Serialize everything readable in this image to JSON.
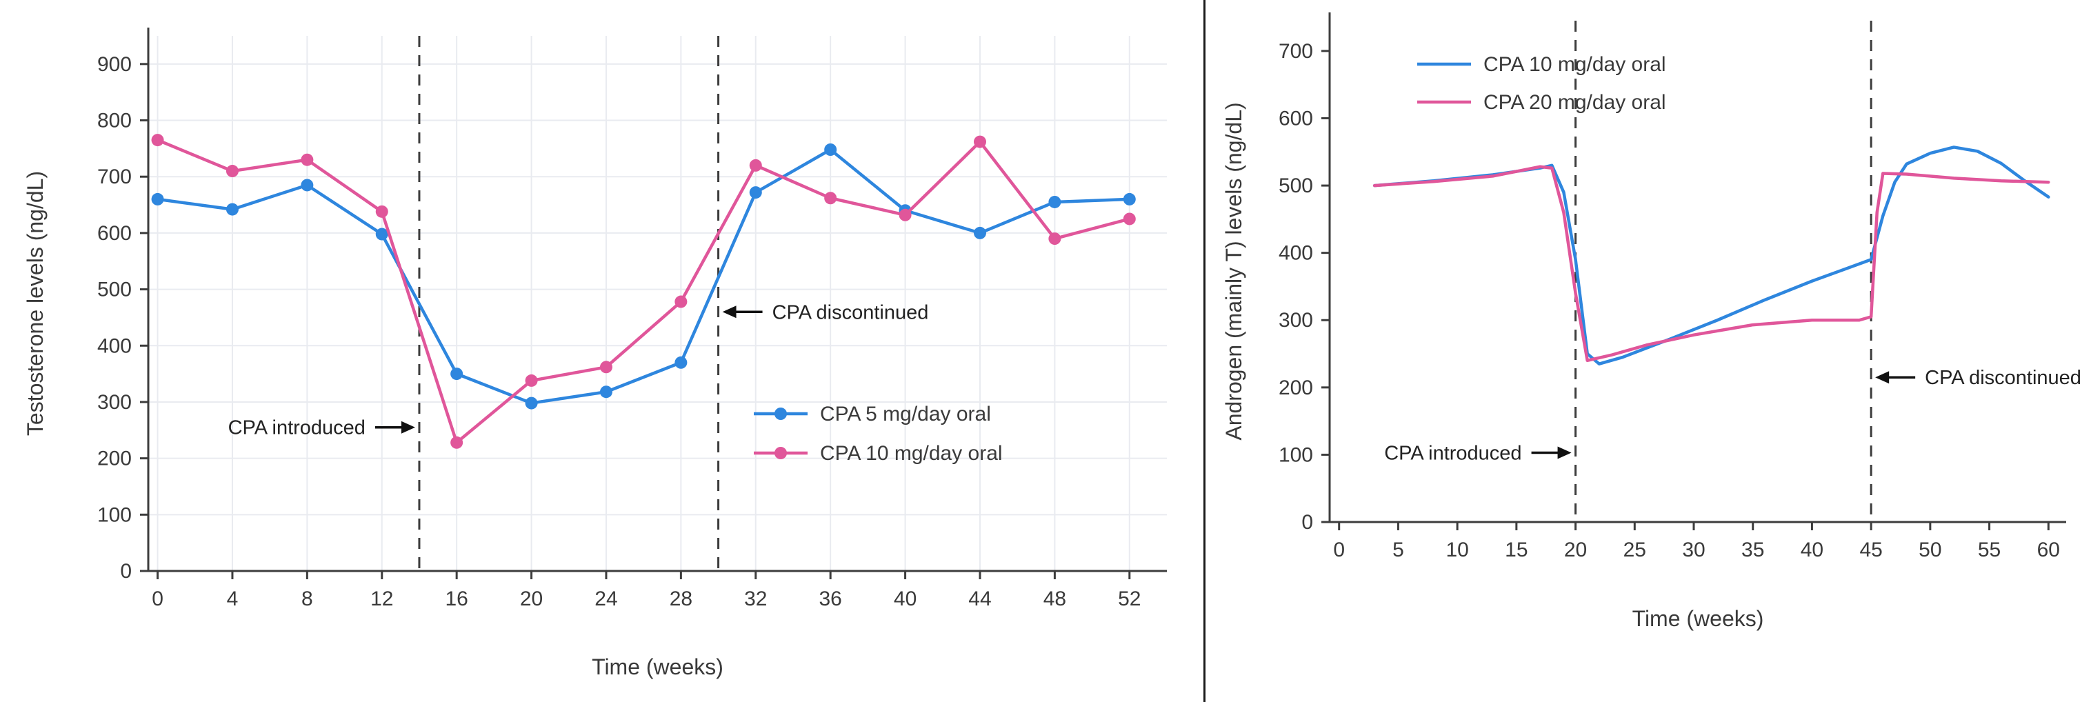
{
  "figure": {
    "background": "#ffffff",
    "divider_color": "#1a1a1a",
    "axis_color": "#3d3d3d",
    "grid_color": "#e9ebf0",
    "dashed_line_color": "#3c3c3c"
  },
  "chart_data": [
    {
      "type": "line",
      "title": "",
      "xlabel": "Time (weeks)",
      "ylabel": "Testosterone levels (ng/dL)",
      "xlim": [
        -0.5,
        54
      ],
      "ylim": [
        0,
        950
      ],
      "xticks": [
        0,
        4,
        8,
        12,
        16,
        20,
        24,
        28,
        32,
        36,
        40,
        44,
        48,
        52
      ],
      "yticks": [
        0,
        100,
        200,
        300,
        400,
        500,
        600,
        700,
        800,
        900
      ],
      "grid": true,
      "legend_position": "lower-right",
      "series": [
        {
          "name": "CPA 5 mg/day oral",
          "color": "#2e86de",
          "markers": true,
          "x": [
            0,
            4,
            8,
            12,
            16,
            20,
            24,
            28,
            32,
            36,
            40,
            44,
            48,
            52
          ],
          "y": [
            660,
            642,
            685,
            598,
            350,
            298,
            318,
            370,
            672,
            748,
            640,
            600,
            655,
            660
          ]
        },
        {
          "name": "CPA 10 mg/day oral",
          "color": "#e0569a",
          "markers": true,
          "x": [
            0,
            4,
            8,
            12,
            16,
            20,
            24,
            28,
            32,
            36,
            40,
            44,
            48,
            52
          ],
          "y": [
            765,
            710,
            730,
            638,
            228,
            338,
            362,
            478,
            720,
            662,
            632,
            762,
            590,
            625
          ]
        }
      ],
      "vlines": [
        14,
        30
      ],
      "annotations": [
        {
          "text": "CPA introduced",
          "direction": "right",
          "x": 14,
          "y": 255
        },
        {
          "text": "CPA discontinued",
          "direction": "left",
          "x": 30,
          "y": 460
        }
      ]
    },
    {
      "type": "line",
      "title": "",
      "xlabel": "Time (weeks)",
      "ylabel": "Androgen (mainly T) levels (ng/dL)",
      "xlim": [
        -0.8,
        61.5
      ],
      "ylim": [
        0,
        745
      ],
      "xticks": [
        0,
        5,
        10,
        15,
        20,
        25,
        30,
        35,
        40,
        45,
        50,
        55,
        60
      ],
      "yticks": [
        0,
        100,
        200,
        300,
        400,
        500,
        600,
        700
      ],
      "grid": false,
      "legend_position": "upper-left",
      "series": [
        {
          "name": "CPA 10 mg/day oral",
          "color": "#2e86de",
          "markers": false,
          "x": [
            3,
            8,
            13,
            17,
            18,
            19,
            20,
            21,
            22,
            24,
            28,
            32,
            36,
            40,
            45,
            46,
            47,
            48,
            50,
            52,
            54,
            56,
            58,
            60
          ],
          "y": [
            500,
            507,
            516,
            526,
            530,
            490,
            390,
            250,
            235,
            245,
            272,
            300,
            330,
            358,
            390,
            455,
            505,
            532,
            548,
            557,
            551,
            533,
            507,
            483
          ]
        },
        {
          "name": "CPA 20 mg/day oral",
          "color": "#e0569a",
          "markers": false,
          "x": [
            3,
            8,
            13,
            17,
            18,
            19,
            20,
            21,
            23,
            26,
            30,
            35,
            40,
            44,
            45,
            45.5,
            46,
            48,
            52,
            56,
            60
          ],
          "y": [
            500,
            506,
            514,
            528,
            526,
            460,
            340,
            240,
            248,
            263,
            278,
            293,
            300,
            300,
            305,
            460,
            518,
            517,
            511,
            507,
            505
          ]
        }
      ],
      "vlines": [
        20,
        45
      ],
      "annotations": [
        {
          "text": "CPA introduced",
          "direction": "right",
          "x": 20,
          "y": 103
        },
        {
          "text": "CPA discontinued",
          "direction": "left",
          "x": 45,
          "y": 215
        }
      ]
    }
  ]
}
